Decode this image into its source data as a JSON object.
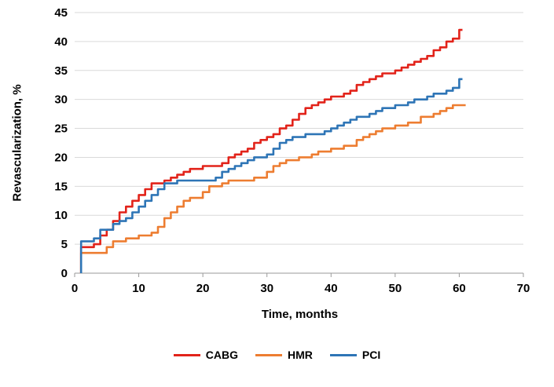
{
  "chart_data": {
    "type": "line",
    "subtype": "step",
    "title": "",
    "xlabel": "Time, months",
    "ylabel": "Revascularization, %",
    "xlim": [
      0,
      70
    ],
    "ylim": [
      0,
      45
    ],
    "x_ticks": [
      0,
      10,
      20,
      30,
      40,
      50,
      60,
      70
    ],
    "y_ticks": [
      0,
      5,
      10,
      15,
      20,
      25,
      30,
      35,
      40,
      45
    ],
    "grid": "horizontal",
    "legend_position": "bottom",
    "colors": {
      "gridline": "#d9d9d9",
      "axis": "#9a9a9a",
      "text": "#000000"
    },
    "series": [
      {
        "name": "CABG",
        "color": "#e2231a",
        "points": [
          [
            1,
            4.5
          ],
          [
            3,
            5
          ],
          [
            4,
            6.5
          ],
          [
            5,
            7.5
          ],
          [
            6,
            9
          ],
          [
            7,
            10.5
          ],
          [
            8,
            11.5
          ],
          [
            9,
            12.5
          ],
          [
            10,
            13.5
          ],
          [
            11,
            14.5
          ],
          [
            12,
            15.5
          ],
          [
            14,
            16
          ],
          [
            15,
            16.5
          ],
          [
            16,
            17
          ],
          [
            17,
            17.5
          ],
          [
            18,
            18
          ],
          [
            20,
            18.5
          ],
          [
            23,
            19
          ],
          [
            24,
            20
          ],
          [
            25,
            20.5
          ],
          [
            26,
            21
          ],
          [
            27,
            21.5
          ],
          [
            28,
            22.5
          ],
          [
            29,
            23
          ],
          [
            30,
            23.5
          ],
          [
            31,
            24
          ],
          [
            32,
            25
          ],
          [
            33,
            25.5
          ],
          [
            34,
            26.5
          ],
          [
            35,
            27.5
          ],
          [
            36,
            28.5
          ],
          [
            37,
            29
          ],
          [
            38,
            29.5
          ],
          [
            39,
            30
          ],
          [
            40,
            30.5
          ],
          [
            42,
            31
          ],
          [
            43,
            31.5
          ],
          [
            44,
            32.5
          ],
          [
            45,
            33
          ],
          [
            46,
            33.5
          ],
          [
            47,
            34
          ],
          [
            48,
            34.5
          ],
          [
            50,
            35
          ],
          [
            51,
            35.5
          ],
          [
            52,
            36
          ],
          [
            53,
            36.5
          ],
          [
            54,
            37
          ],
          [
            55,
            37.5
          ],
          [
            56,
            38.5
          ],
          [
            57,
            39
          ],
          [
            58,
            40
          ],
          [
            59,
            40.5
          ],
          [
            60,
            42
          ],
          [
            60.5,
            42
          ]
        ]
      },
      {
        "name": "HMR",
        "color": "#ed7d31",
        "points": [
          [
            1,
            3.5
          ],
          [
            5,
            4.5
          ],
          [
            6,
            5.5
          ],
          [
            8,
            6
          ],
          [
            10,
            6.5
          ],
          [
            12,
            7
          ],
          [
            13,
            8
          ],
          [
            14,
            9.5
          ],
          [
            15,
            10.5
          ],
          [
            16,
            11.5
          ],
          [
            17,
            12.5
          ],
          [
            18,
            13
          ],
          [
            20,
            14
          ],
          [
            21,
            15
          ],
          [
            23,
            15.5
          ],
          [
            24,
            16
          ],
          [
            28,
            16.5
          ],
          [
            30,
            17.5
          ],
          [
            31,
            18.5
          ],
          [
            32,
            19
          ],
          [
            33,
            19.5
          ],
          [
            35,
            20
          ],
          [
            37,
            20.5
          ],
          [
            38,
            21
          ],
          [
            40,
            21.5
          ],
          [
            42,
            22
          ],
          [
            44,
            23
          ],
          [
            45,
            23.5
          ],
          [
            46,
            24
          ],
          [
            47,
            24.5
          ],
          [
            48,
            25
          ],
          [
            50,
            25.5
          ],
          [
            52,
            26
          ],
          [
            54,
            27
          ],
          [
            56,
            27.5
          ],
          [
            57,
            28
          ],
          [
            58,
            28.5
          ],
          [
            59,
            29
          ],
          [
            61,
            29
          ]
        ]
      },
      {
        "name": "PCI",
        "color": "#2e75b6",
        "points": [
          [
            1,
            5.5
          ],
          [
            3,
            6
          ],
          [
            4,
            7.5
          ],
          [
            6,
            8.5
          ],
          [
            7,
            9
          ],
          [
            8,
            9.5
          ],
          [
            9,
            10.5
          ],
          [
            10,
            11.5
          ],
          [
            11,
            12.5
          ],
          [
            12,
            13.5
          ],
          [
            13,
            14.5
          ],
          [
            14,
            15.5
          ],
          [
            16,
            16
          ],
          [
            22,
            16.5
          ],
          [
            23,
            17.5
          ],
          [
            24,
            18
          ],
          [
            25,
            18.5
          ],
          [
            26,
            19
          ],
          [
            27,
            19.5
          ],
          [
            28,
            20
          ],
          [
            30,
            20.5
          ],
          [
            31,
            21.5
          ],
          [
            32,
            22.5
          ],
          [
            33,
            23
          ],
          [
            34,
            23.5
          ],
          [
            36,
            24
          ],
          [
            39,
            24.5
          ],
          [
            40,
            25
          ],
          [
            41,
            25.5
          ],
          [
            42,
            26
          ],
          [
            43,
            26.5
          ],
          [
            44,
            27
          ],
          [
            46,
            27.5
          ],
          [
            47,
            28
          ],
          [
            48,
            28.5
          ],
          [
            50,
            29
          ],
          [
            52,
            29.5
          ],
          [
            53,
            30
          ],
          [
            55,
            30.5
          ],
          [
            56,
            31
          ],
          [
            58,
            31.5
          ],
          [
            59,
            32
          ],
          [
            60,
            33.5
          ],
          [
            60.5,
            33.5
          ]
        ]
      }
    ]
  }
}
